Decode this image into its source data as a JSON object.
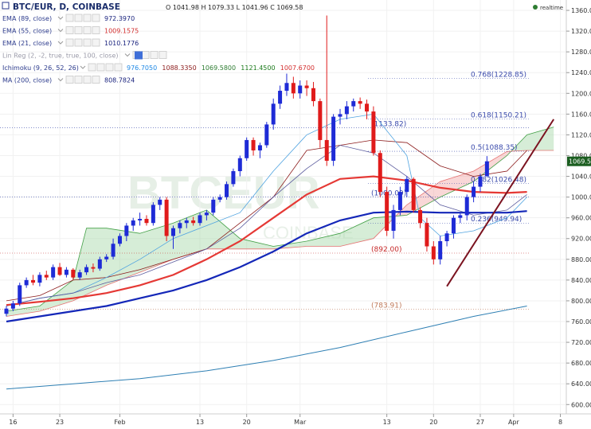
{
  "header": {
    "symbol_title": "BTC/EUR, D, COINBASE",
    "ohlc": "O 1041.98  H 1079.33  L 1041.96  C 1069.58",
    "status": "realtime"
  },
  "indicators": [
    {
      "name": "EMA (89, close)",
      "values": [
        "972.3970"
      ],
      "colors": [
        "#1a237e"
      ],
      "muted": false
    },
    {
      "name": "EMA (55, close)",
      "values": [
        "1009.1575"
      ],
      "colors": [
        "#d32f2f"
      ],
      "muted": false
    },
    {
      "name": "EMA (21, close)",
      "values": [
        "1010.1776"
      ],
      "colors": [
        "#1a237e"
      ],
      "muted": false
    },
    {
      "name": "Lin Reg (2, -2, true, true, 100, close)",
      "values": [],
      "colors": [],
      "muted": true
    },
    {
      "name": "Ichimoku (9, 26, 52, 26)",
      "values": [
        "976.7050",
        "1088.3350",
        "1069.5800",
        "1121.4500",
        "1007.6700"
      ],
      "colors": [
        "#1e88e5",
        "#8b1a1a",
        "#2e7d32",
        "#1a7a1a",
        "#d32f2f"
      ],
      "muted": false
    },
    {
      "name": "MA (200, close)",
      "values": [
        "808.7824"
      ],
      "colors": [
        "#1a237e"
      ],
      "muted": false
    }
  ],
  "last_price_tag": "1069.5",
  "chart_data": {
    "type": "candlestick",
    "ylim": [
      582,
      1380
    ],
    "y_ticks": [
      600,
      640,
      680,
      720,
      760,
      800,
      840,
      880,
      920,
      960,
      1000,
      1040,
      1080,
      1120,
      1160,
      1200,
      1240,
      1280,
      1320,
      1360
    ],
    "y_tick_labels": [
      "600.00",
      "640.00",
      "680.00",
      "720.00",
      "760.00",
      "800.00",
      "840.00",
      "880.00",
      "920.00",
      "960.00",
      "1000.00",
      "1040.00",
      "1080.00",
      "1120.00",
      "1160.00",
      "1200.00",
      "1240.00",
      "1280.00",
      "1320.00",
      "1360.00"
    ],
    "x_ticks": [
      {
        "label": "16",
        "idx": 1
      },
      {
        "label": "23",
        "idx": 8
      },
      {
        "label": "Feb",
        "idx": 17
      },
      {
        "label": "13",
        "idx": 29
      },
      {
        "label": "20",
        "idx": 36
      },
      {
        "label": "Mar",
        "idx": 44
      },
      {
        "label": "13",
        "idx": 57
      },
      {
        "label": "20",
        "idx": 64
      },
      {
        "label": "27",
        "idx": 71
      },
      {
        "label": "Apr",
        "idx": 76
      },
      {
        "label": "8",
        "idx": 83
      }
    ],
    "candles": [
      [
        775,
        790,
        770,
        785
      ],
      [
        785,
        800,
        780,
        795
      ],
      [
        795,
        835,
        790,
        830
      ],
      [
        830,
        845,
        825,
        840
      ],
      [
        840,
        850,
        830,
        835
      ],
      [
        835,
        855,
        828,
        850
      ],
      [
        850,
        858,
        840,
        845
      ],
      [
        845,
        870,
        840,
        865
      ],
      [
        865,
        873,
        848,
        850
      ],
      [
        850,
        865,
        845,
        860
      ],
      [
        860,
        863,
        840,
        845
      ],
      [
        845,
        860,
        840,
        855
      ],
      [
        855,
        870,
        850,
        865
      ],
      [
        865,
        872,
        855,
        862
      ],
      [
        862,
        885,
        858,
        880
      ],
      [
        880,
        890,
        875,
        885
      ],
      [
        885,
        920,
        880,
        910
      ],
      [
        910,
        930,
        905,
        925
      ],
      [
        925,
        950,
        915,
        945
      ],
      [
        945,
        960,
        935,
        955
      ],
      [
        955,
        970,
        945,
        958
      ],
      [
        958,
        965,
        945,
        950
      ],
      [
        950,
        990,
        945,
        985
      ],
      [
        985,
        1000,
        975,
        995
      ],
      [
        995,
        1000,
        915,
        925
      ],
      [
        925,
        945,
        900,
        940
      ],
      [
        940,
        955,
        930,
        950
      ],
      [
        950,
        960,
        940,
        955
      ],
      [
        955,
        962,
        945,
        950
      ],
      [
        950,
        970,
        945,
        965
      ],
      [
        965,
        975,
        955,
        970
      ],
      [
        970,
        1000,
        965,
        995
      ],
      [
        995,
        1005,
        990,
        1000
      ],
      [
        1000,
        1030,
        995,
        1025
      ],
      [
        1025,
        1055,
        1020,
        1050
      ],
      [
        1050,
        1080,
        1040,
        1075
      ],
      [
        1075,
        1115,
        1070,
        1110
      ],
      [
        1110,
        1115,
        1080,
        1090
      ],
      [
        1090,
        1105,
        1075,
        1100
      ],
      [
        1100,
        1145,
        1095,
        1140
      ],
      [
        1140,
        1190,
        1130,
        1180
      ],
      [
        1180,
        1215,
        1170,
        1205
      ],
      [
        1205,
        1238,
        1195,
        1220
      ],
      [
        1220,
        1232,
        1190,
        1200
      ],
      [
        1200,
        1225,
        1190,
        1215
      ],
      [
        1215,
        1225,
        1195,
        1210
      ],
      [
        1210,
        1222,
        1175,
        1185
      ],
      [
        1185,
        1190,
        1095,
        1110
      ],
      [
        1110,
        1350,
        1060,
        1070
      ],
      [
        1070,
        1160,
        1060,
        1155
      ],
      [
        1155,
        1170,
        1140,
        1160
      ],
      [
        1160,
        1185,
        1150,
        1175
      ],
      [
        1175,
        1190,
        1165,
        1185
      ],
      [
        1185,
        1192,
        1170,
        1180
      ],
      [
        1180,
        1188,
        1150,
        1165
      ],
      [
        1165,
        1175,
        1080,
        1085
      ],
      [
        1085,
        1090,
        1000,
        1010
      ],
      [
        1010,
        1020,
        925,
        935
      ],
      [
        935,
        985,
        920,
        975
      ],
      [
        975,
        1020,
        965,
        1010
      ],
      [
        1010,
        1040,
        1000,
        1035
      ],
      [
        1035,
        1038,
        970,
        975
      ],
      [
        975,
        980,
        940,
        950
      ],
      [
        950,
        960,
        895,
        905
      ],
      [
        905,
        915,
        870,
        880
      ],
      [
        880,
        925,
        870,
        915
      ],
      [
        915,
        935,
        905,
        930
      ],
      [
        930,
        965,
        920,
        960
      ],
      [
        960,
        970,
        950,
        965
      ],
      [
        965,
        1005,
        955,
        1000
      ],
      [
        1000,
        1030,
        990,
        1020
      ],
      [
        1020,
        1045,
        1010,
        1040
      ],
      [
        1040,
        1079,
        1040,
        1069
      ]
    ],
    "ema21": [
      [
        0,
        790
      ],
      [
        5,
        805
      ],
      [
        10,
        815
      ],
      [
        15,
        835
      ],
      [
        20,
        850
      ],
      [
        25,
        875
      ],
      [
        30,
        900
      ],
      [
        35,
        940
      ],
      [
        40,
        1000
      ],
      [
        45,
        1055
      ],
      [
        50,
        1100
      ],
      [
        55,
        1085
      ],
      [
        60,
        1040
      ],
      [
        65,
        985
      ],
      [
        70,
        965
      ],
      [
        75,
        975
      ],
      [
        78,
        1005
      ]
    ],
    "ema55": [
      [
        0,
        792
      ],
      [
        5,
        798
      ],
      [
        10,
        805
      ],
      [
        15,
        815
      ],
      [
        20,
        830
      ],
      [
        25,
        850
      ],
      [
        30,
        880
      ],
      [
        35,
        915
      ],
      [
        40,
        960
      ],
      [
        45,
        1005
      ],
      [
        50,
        1035
      ],
      [
        55,
        1040
      ],
      [
        60,
        1032
      ],
      [
        65,
        1018
      ],
      [
        70,
        1010
      ],
      [
        75,
        1008
      ],
      [
        78,
        1010
      ]
    ],
    "ema89": [
      [
        0,
        760
      ],
      [
        5,
        770
      ],
      [
        10,
        780
      ],
      [
        15,
        790
      ],
      [
        20,
        805
      ],
      [
        25,
        820
      ],
      [
        30,
        840
      ],
      [
        35,
        865
      ],
      [
        40,
        895
      ],
      [
        45,
        930
      ],
      [
        50,
        955
      ],
      [
        55,
        970
      ],
      [
        60,
        972
      ],
      [
        65,
        970
      ],
      [
        70,
        970
      ],
      [
        75,
        970
      ],
      [
        78,
        973
      ]
    ],
    "ma200": [
      [
        0,
        630
      ],
      [
        10,
        640
      ],
      [
        20,
        650
      ],
      [
        30,
        665
      ],
      [
        40,
        685
      ],
      [
        50,
        710
      ],
      [
        60,
        740
      ],
      [
        70,
        770
      ],
      [
        78,
        790
      ]
    ],
    "tenkan": [
      [
        0,
        790
      ],
      [
        5,
        805
      ],
      [
        10,
        815
      ],
      [
        15,
        845
      ],
      [
        20,
        880
      ],
      [
        25,
        920
      ],
      [
        30,
        945
      ],
      [
        35,
        970
      ],
      [
        40,
        1050
      ],
      [
        45,
        1120
      ],
      [
        50,
        1150
      ],
      [
        55,
        1160
      ],
      [
        60,
        1080
      ],
      [
        62,
        960
      ],
      [
        65,
        925
      ],
      [
        70,
        935
      ],
      [
        75,
        960
      ],
      [
        78,
        1000
      ]
    ],
    "kijun": [
      [
        0,
        800
      ],
      [
        5,
        810
      ],
      [
        10,
        840
      ],
      [
        15,
        845
      ],
      [
        20,
        860
      ],
      [
        25,
        880
      ],
      [
        30,
        900
      ],
      [
        35,
        950
      ],
      [
        40,
        1000
      ],
      [
        45,
        1090
      ],
      [
        50,
        1100
      ],
      [
        55,
        1110
      ],
      [
        60,
        1105
      ],
      [
        65,
        1060
      ],
      [
        70,
        1040
      ],
      [
        75,
        1050
      ],
      [
        78,
        1090
      ]
    ],
    "span_a": [
      [
        0,
        780
      ],
      [
        5,
        790
      ],
      [
        10,
        840
      ],
      [
        12,
        940
      ],
      [
        15,
        940
      ],
      [
        20,
        930
      ],
      [
        25,
        950
      ],
      [
        30,
        975
      ],
      [
        35,
        920
      ],
      [
        40,
        905
      ],
      [
        45,
        915
      ],
      [
        50,
        930
      ],
      [
        55,
        960
      ],
      [
        60,
        965
      ],
      [
        65,
        1000
      ],
      [
        70,
        1030
      ],
      [
        75,
        1080
      ],
      [
        78,
        1120
      ],
      [
        82,
        1135
      ]
    ],
    "span_b": [
      [
        0,
        770
      ],
      [
        5,
        780
      ],
      [
        10,
        800
      ],
      [
        15,
        830
      ],
      [
        20,
        855
      ],
      [
        25,
        880
      ],
      [
        30,
        900
      ],
      [
        35,
        900
      ],
      [
        40,
        900
      ],
      [
        45,
        905
      ],
      [
        50,
        905
      ],
      [
        55,
        920
      ],
      [
        60,
        985
      ],
      [
        65,
        1030
      ],
      [
        70,
        1050
      ],
      [
        75,
        1088
      ],
      [
        78,
        1090
      ],
      [
        82,
        1090
      ]
    ],
    "fib_levels": [
      {
        "label": "0.768(1228.85)",
        "price": 1228.85
      },
      {
        "label": "0.618(1150.21)",
        "price": 1150.21
      },
      {
        "label": "(1133.82)",
        "price": 1133.82
      },
      {
        "label": "0.5(1088.35)",
        "price": 1088.35
      },
      {
        "label": "0.382(1026.48)",
        "price": 1026.48
      },
      {
        "label": "(1000.09)",
        "price": 1000.09
      },
      {
        "label": "0.236(949.94)",
        "price": 949.94
      },
      {
        "label": "(892.00)",
        "price": 892.0
      },
      {
        "label": "(783.91)",
        "price": 783.91
      }
    ],
    "trendline": [
      [
        66,
        828
      ],
      [
        82,
        1150
      ]
    ],
    "watermark_main": "BTCEUR",
    "watermark_sub": "COINBASE"
  }
}
